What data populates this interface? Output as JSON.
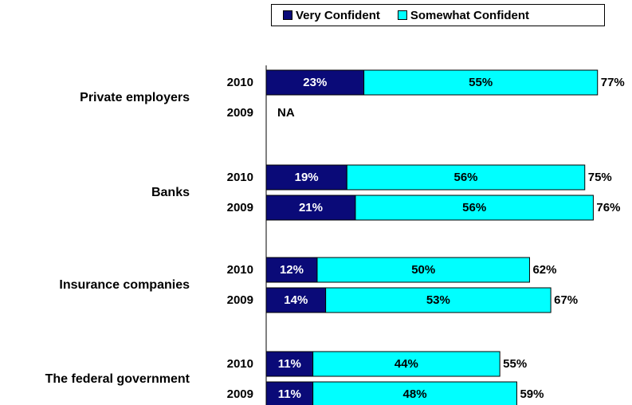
{
  "colors": {
    "very": "#0A0A78",
    "somewhat": "#00FFFF"
  },
  "chart_data": {
    "type": "bar",
    "orientation": "horizontal",
    "stacked": true,
    "legend_position": "top",
    "series": [
      {
        "name": "Very Confident"
      },
      {
        "name": "Somewhat Confident"
      }
    ],
    "xlim": [
      0,
      100
    ],
    "groups": [
      {
        "label": "Private employers",
        "rows": [
          {
            "year": "2010",
            "very": 23,
            "somewhat": 55,
            "total": 77,
            "very_label": "23%",
            "somewhat_label": "55%",
            "total_label": "77%"
          },
          {
            "year": "2009",
            "na": true,
            "na_label": "NA"
          }
        ]
      },
      {
        "label": "Banks",
        "rows": [
          {
            "year": "2010",
            "very": 19,
            "somewhat": 56,
            "total": 75,
            "very_label": "19%",
            "somewhat_label": "56%",
            "total_label": "75%"
          },
          {
            "year": "2009",
            "very": 21,
            "somewhat": 56,
            "total": 76,
            "very_label": "21%",
            "somewhat_label": "56%",
            "total_label": "76%"
          }
        ]
      },
      {
        "label": "Insurance companies",
        "rows": [
          {
            "year": "2010",
            "very": 12,
            "somewhat": 50,
            "total": 62,
            "very_label": "12%",
            "somewhat_label": "50%",
            "total_label": "62%"
          },
          {
            "year": "2009",
            "very": 14,
            "somewhat": 53,
            "total": 67,
            "very_label": "14%",
            "somewhat_label": "53%",
            "total_label": "67%"
          }
        ]
      },
      {
        "label": "The federal government",
        "rows": [
          {
            "year": "2010",
            "very": 11,
            "somewhat": 44,
            "total": 55,
            "very_label": "11%",
            "somewhat_label": "44%",
            "total_label": "55%"
          },
          {
            "year": "2009",
            "very": 11,
            "somewhat": 48,
            "total": 59,
            "very_label": "11%",
            "somewhat_label": "48%",
            "total_label": "59%"
          }
        ]
      }
    ]
  }
}
